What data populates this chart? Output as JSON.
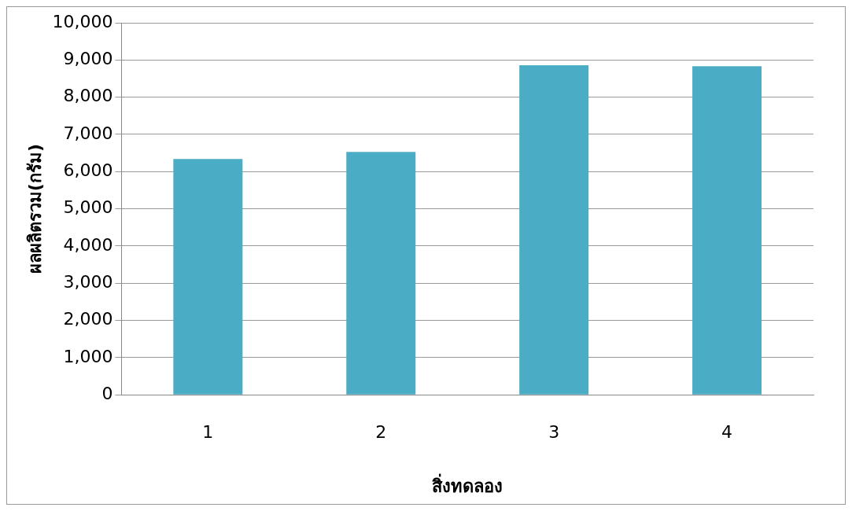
{
  "chart_data": {
    "type": "bar",
    "xlabel": "สิ่งทดลอง",
    "ylabel": "ผลผลิตรวม(กรัม)",
    "categories": [
      "1",
      "2",
      "3",
      "4"
    ],
    "values": [
      6340,
      6530,
      8860,
      8830
    ],
    "color": "#4bacc6",
    "ylim": [
      0,
      10000
    ],
    "yticks": [
      0,
      {
        "value": 1000,
        "label": "1,000"
      },
      {
        "value": 2000,
        "label": "2,000"
      },
      {
        "value": 3000,
        "label": "3,000"
      },
      {
        "value": 4000,
        "label": "4,000"
      },
      {
        "value": 5000,
        "label": "5,000"
      },
      {
        "value": 6000,
        "label": "6,000"
      },
      {
        "value": 7000,
        "label": "7,000"
      },
      {
        "value": 8000,
        "label": "8,000"
      },
      {
        "value": 9000,
        "label": "9,000"
      },
      {
        "value": 10000,
        "label": "10,000"
      }
    ],
    "grid": "y",
    "legend": false
  }
}
